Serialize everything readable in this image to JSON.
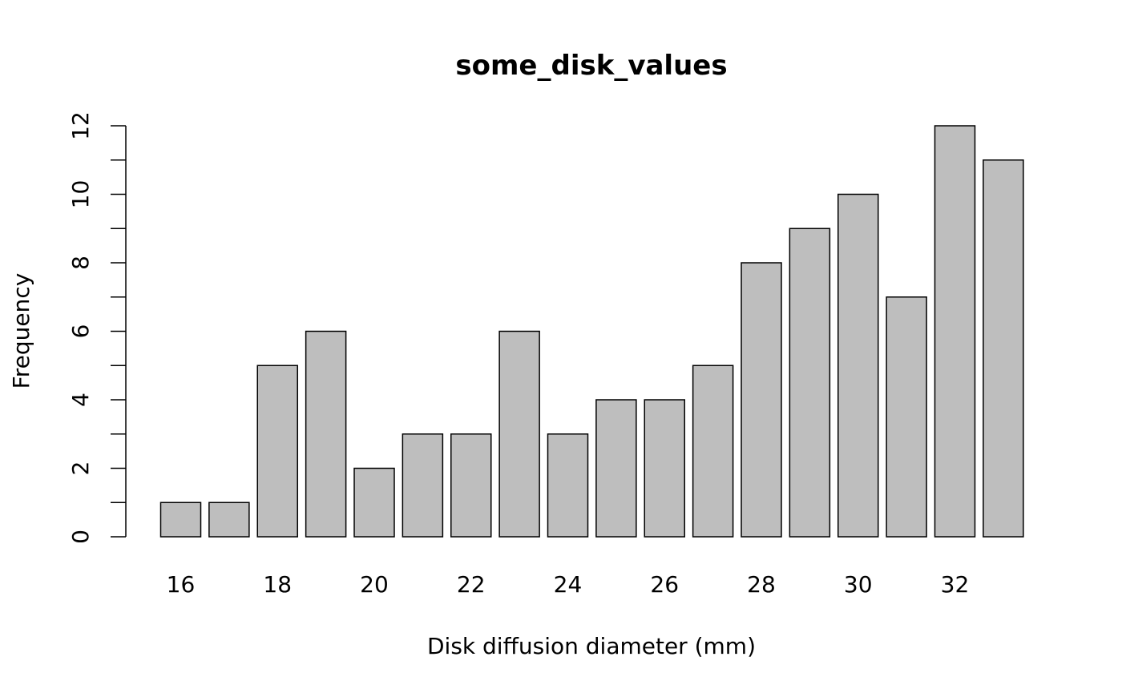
{
  "chart_data": {
    "type": "bar",
    "title": "some_disk_values",
    "xlabel": "Disk diffusion diameter (mm)",
    "ylabel": "Frequency",
    "x": [
      16,
      17,
      18,
      19,
      20,
      21,
      22,
      23,
      24,
      25,
      26,
      27,
      28,
      29,
      30,
      31,
      32,
      33
    ],
    "values": [
      1,
      1,
      5,
      6,
      2,
      3,
      3,
      6,
      3,
      4,
      4,
      5,
      8,
      9,
      10,
      7,
      12,
      11
    ],
    "xticks": [
      "16",
      "18",
      "20",
      "22",
      "24",
      "26",
      "28",
      "30",
      "32"
    ],
    "yticks": [
      "0",
      "2",
      "4",
      "6",
      "8",
      "10",
      "12"
    ],
    "ylim": [
      0,
      12
    ],
    "grid": false,
    "bar_color": "#bebebe",
    "edge_color": "#000000"
  }
}
